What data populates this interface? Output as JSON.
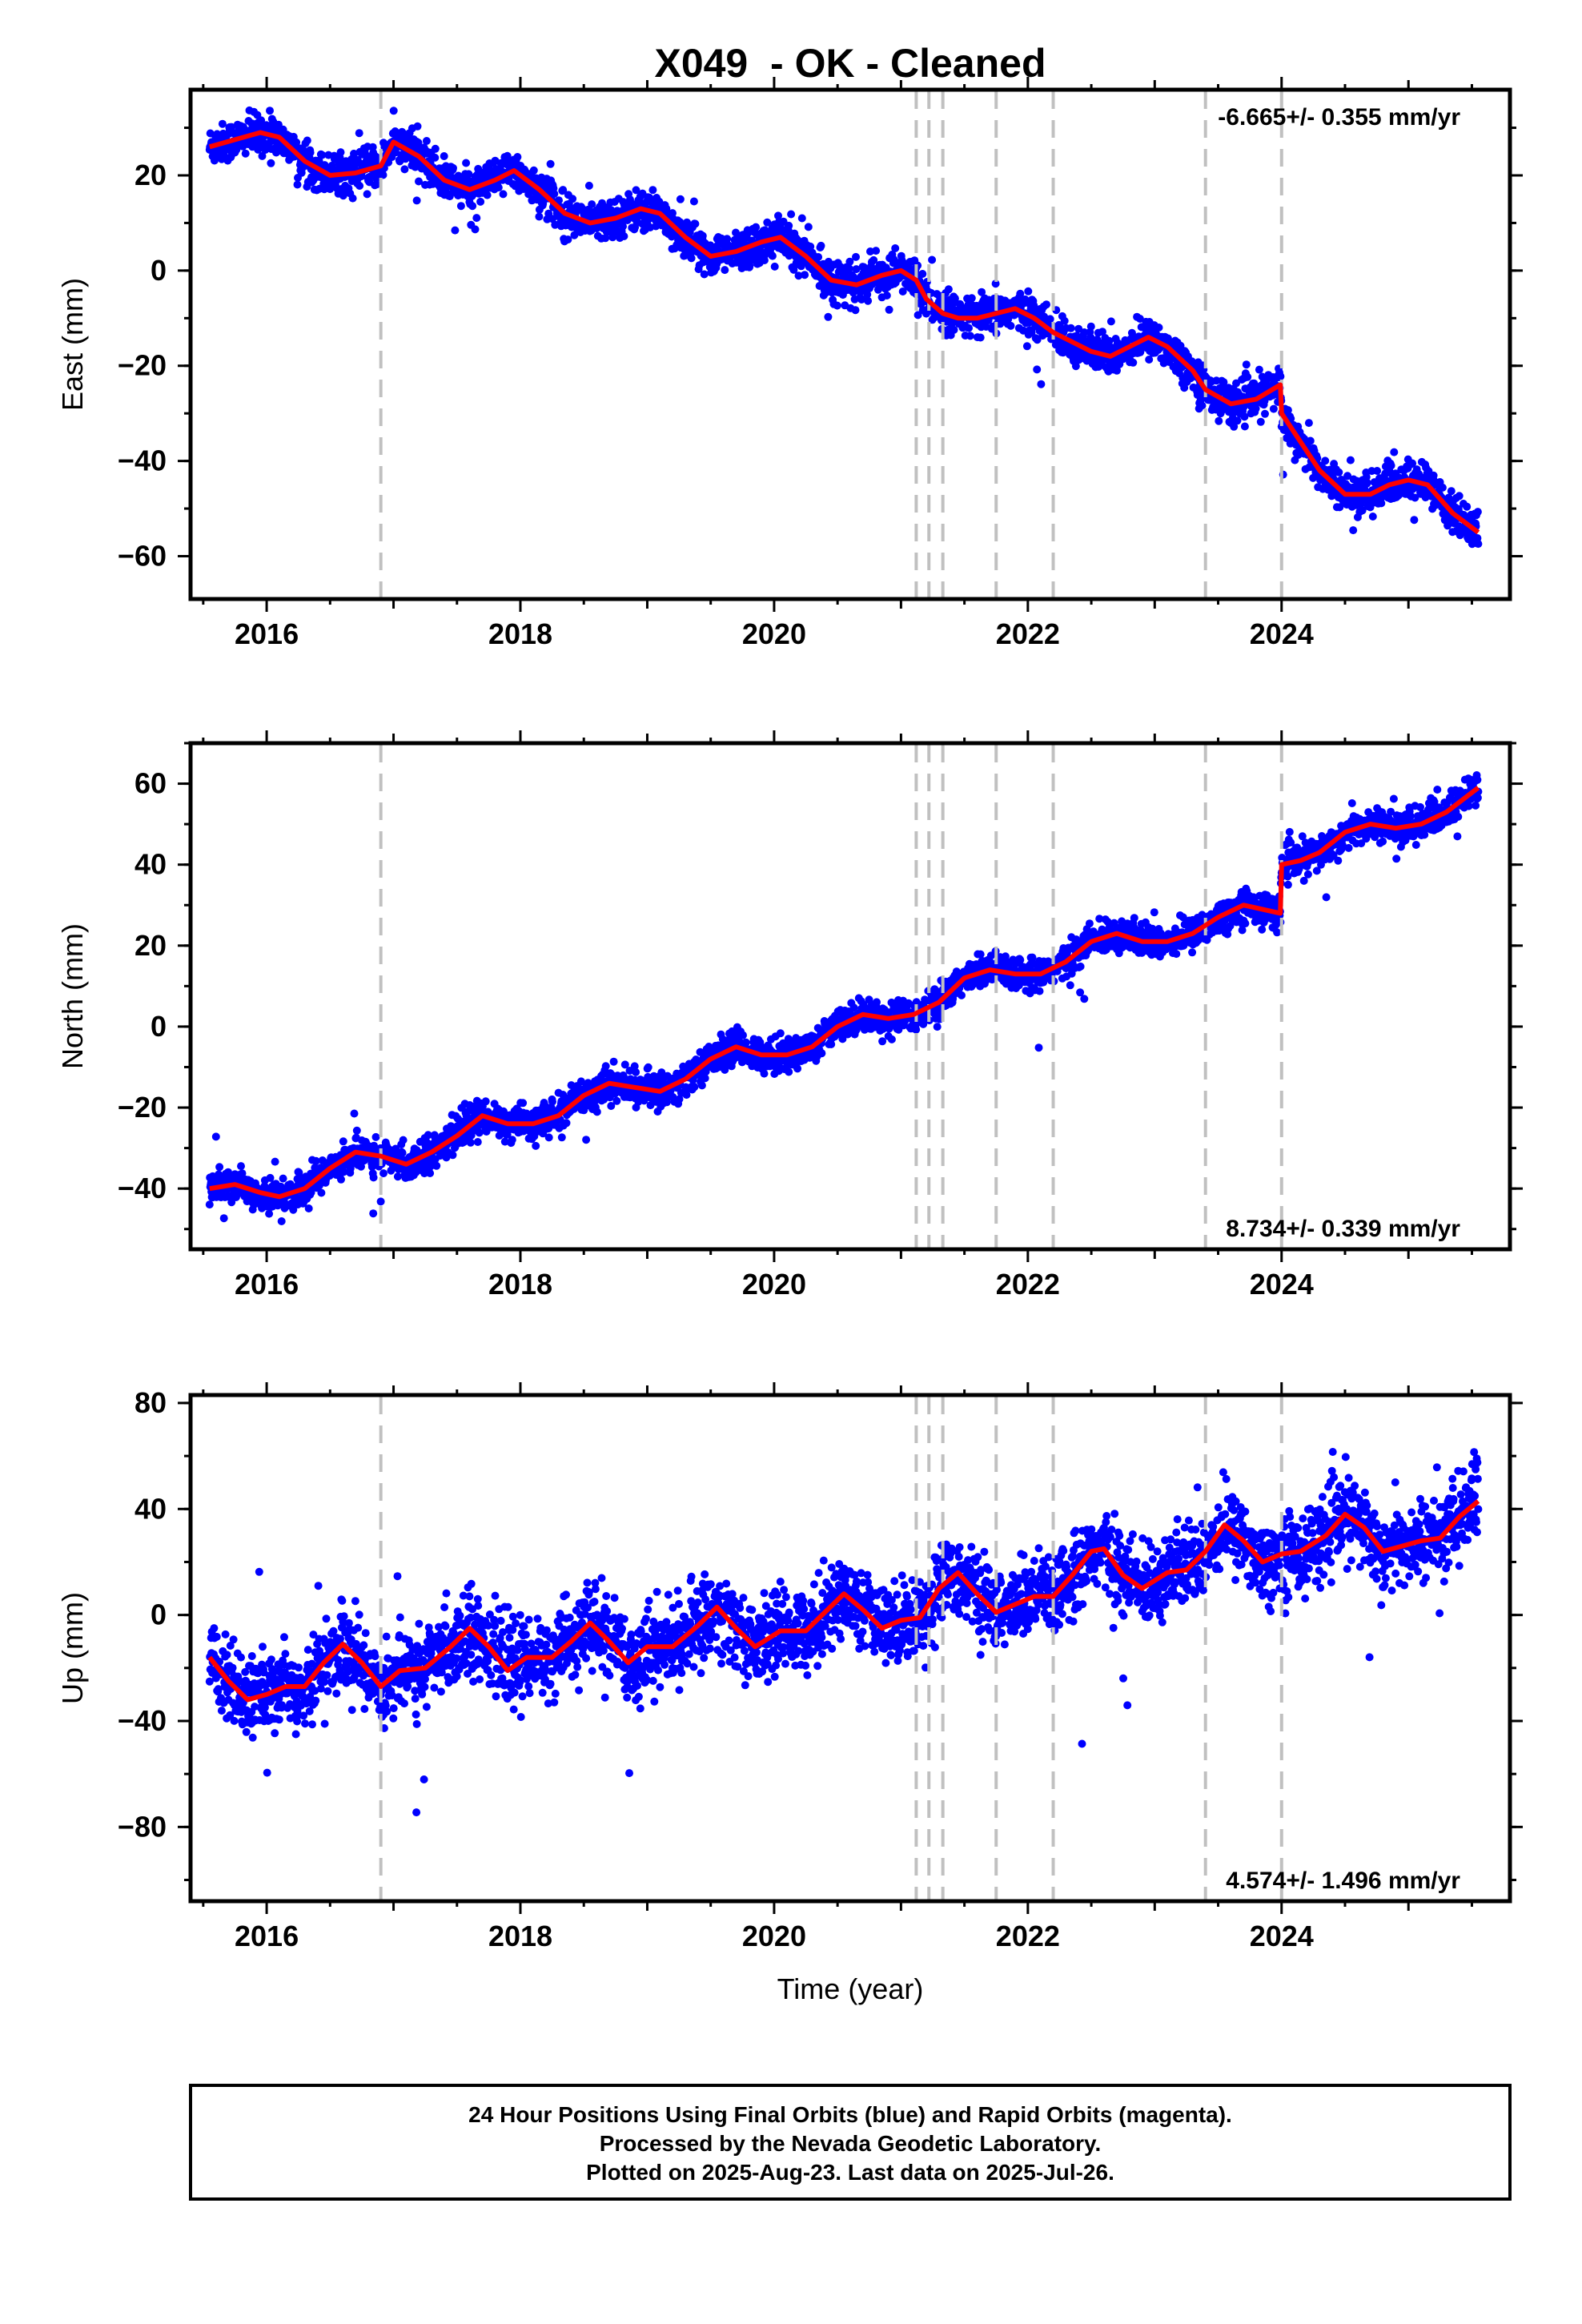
{
  "page": {
    "title": "X049  - OK - Cleaned",
    "footer_lines": [
      "24 Hour Positions Using Final Orbits (blue) and Rapid Orbits (magenta).",
      "Processed by the Nevada Geodetic Laboratory.",
      "Plotted on 2025-Aug-23. Last data on 2025-Jul-26."
    ]
  },
  "colors": {
    "points": "#0000ff",
    "model": "#ff0000",
    "event_lines": "#c0c0c0",
    "frame": "#000000"
  },
  "chart_data": [
    {
      "type": "scatter",
      "title": "X049  - OK - Cleaned",
      "ylabel": "East (mm)",
      "xlabel": "",
      "rate_label": "-6.665+/- 0.355 mm/yr",
      "rate_position": "top-right",
      "xlim": [
        2015.4,
        2025.8
      ],
      "ylim": [
        -69,
        38
      ],
      "xticks": [
        "2016",
        "2018",
        "2020",
        "2022",
        "2024"
      ],
      "yticks": [
        "20",
        "0",
        "−20",
        "−40",
        "−60"
      ],
      "event_lines": [
        2016.9,
        2021.12,
        2021.22,
        2021.33,
        2021.75,
        2022.2,
        2023.4,
        2024.0
      ],
      "model_line": {
        "name": "model",
        "x": [
          2015.55,
          2015.75,
          2015.95,
          2016.1,
          2016.3,
          2016.5,
          2016.7,
          2016.9,
          2017.0,
          2017.2,
          2017.4,
          2017.6,
          2017.8,
          2017.95,
          2018.15,
          2018.35,
          2018.55,
          2018.75,
          2018.95,
          2019.1,
          2019.3,
          2019.5,
          2019.7,
          2019.9,
          2020.05,
          2020.25,
          2020.45,
          2020.65,
          2020.85,
          2021.0,
          2021.12,
          2021.2,
          2021.33,
          2021.45,
          2021.6,
          2021.75,
          2021.9,
          2022.05,
          2022.2,
          2022.35,
          2022.5,
          2022.65,
          2022.8,
          2022.95,
          2023.1,
          2023.3,
          2023.4,
          2023.6,
          2023.8,
          2023.99,
          2024.0,
          2024.15,
          2024.3,
          2024.5,
          2024.7,
          2024.85,
          2025.0,
          2025.15,
          2025.35,
          2025.55
        ],
        "y": [
          26,
          27.5,
          29,
          28,
          23,
          20,
          20.5,
          22,
          27,
          24,
          19,
          17,
          19,
          21,
          17,
          12,
          10,
          11,
          13,
          12,
          7,
          3,
          4,
          6,
          7,
          3,
          -2,
          -3,
          -1,
          0,
          -2,
          -6,
          -9,
          -10,
          -10,
          -9,
          -8,
          -10,
          -13,
          -15,
          -17,
          -18,
          -16,
          -14,
          -16,
          -21,
          -25,
          -28,
          -27,
          -24,
          -30,
          -36,
          -42,
          -47,
          -47,
          -45,
          -44,
          -45,
          -51,
          -55
        ]
      },
      "point_count": 3350
    },
    {
      "type": "scatter",
      "ylabel": "North (mm)",
      "xlabel": "",
      "rate_label": "8.734+/- 0.339 mm/yr",
      "rate_position": "bottom-right",
      "xlim": [
        2015.4,
        2025.8
      ],
      "ylim": [
        -55,
        70
      ],
      "xticks": [
        "2016",
        "2018",
        "2020",
        "2022",
        "2024"
      ],
      "yticks": [
        "60",
        "40",
        "20",
        "0",
        "−20",
        "−40"
      ],
      "event_lines": [
        2016.9,
        2021.12,
        2021.22,
        2021.33,
        2021.75,
        2022.2,
        2023.4,
        2024.0
      ],
      "model_line": {
        "name": "model",
        "x": [
          2015.55,
          2015.75,
          2015.95,
          2016.1,
          2016.3,
          2016.5,
          2016.7,
          2016.9,
          2017.1,
          2017.3,
          2017.5,
          2017.7,
          2017.9,
          2018.1,
          2018.3,
          2018.5,
          2018.7,
          2018.9,
          2019.1,
          2019.3,
          2019.5,
          2019.7,
          2019.9,
          2020.1,
          2020.3,
          2020.5,
          2020.7,
          2020.9,
          2021.1,
          2021.3,
          2021.5,
          2021.7,
          2021.9,
          2022.1,
          2022.3,
          2022.5,
          2022.7,
          2022.9,
          2023.1,
          2023.3,
          2023.5,
          2023.7,
          2023.99,
          2024.0,
          2024.15,
          2024.3,
          2024.5,
          2024.7,
          2024.9,
          2025.1,
          2025.3,
          2025.55
        ],
        "y": [
          -40,
          -39,
          -41,
          -42,
          -40,
          -35,
          -31,
          -32,
          -34,
          -31,
          -27,
          -22,
          -24,
          -24,
          -22,
          -17,
          -14,
          -15,
          -16,
          -13,
          -8,
          -5,
          -7,
          -7,
          -5,
          0,
          3,
          2,
          3,
          6,
          12,
          14,
          13,
          13,
          16,
          21,
          23,
          21,
          21,
          23,
          27,
          30,
          28,
          40,
          41,
          43,
          48,
          50,
          49,
          50,
          53,
          59
        ]
      },
      "point_count": 3350
    },
    {
      "type": "scatter",
      "ylabel": "Up (mm)",
      "xlabel": "Time (year)",
      "rate_label": "4.574+/- 1.496 mm/yr",
      "rate_position": "bottom-right",
      "xlim": [
        2015.4,
        2025.8
      ],
      "ylim": [
        -108,
        83
      ],
      "xticks": [
        "2016",
        "2018",
        "2020",
        "2022",
        "2024"
      ],
      "yticks": [
        "80",
        "40",
        "0",
        "−40",
        "−80"
      ],
      "event_lines": [
        2016.9,
        2021.12,
        2021.22,
        2021.33,
        2021.75,
        2022.2,
        2023.4,
        2024.0
      ],
      "model_line": {
        "name": "model",
        "x": [
          2015.55,
          2015.7,
          2015.85,
          2016.0,
          2016.15,
          2016.3,
          2016.45,
          2016.6,
          2016.75,
          2016.9,
          2017.05,
          2017.25,
          2017.45,
          2017.6,
          2017.75,
          2017.9,
          2018.05,
          2018.25,
          2018.4,
          2018.55,
          2018.7,
          2018.85,
          2019.0,
          2019.2,
          2019.4,
          2019.55,
          2019.7,
          2019.85,
          2020.05,
          2020.25,
          2020.4,
          2020.55,
          2020.7,
          2020.85,
          2021.0,
          2021.15,
          2021.3,
          2021.45,
          2021.6,
          2021.75,
          2021.9,
          2022.05,
          2022.2,
          2022.35,
          2022.5,
          2022.6,
          2022.75,
          2022.9,
          2023.1,
          2023.25,
          2023.4,
          2023.55,
          2023.7,
          2023.85,
          2024.0,
          2024.15,
          2024.35,
          2024.5,
          2024.65,
          2024.8,
          2024.95,
          2025.1,
          2025.25,
          2025.4,
          2025.55
        ],
        "y": [
          -16,
          -25,
          -32,
          -30,
          -27,
          -27,
          -18,
          -11,
          -18,
          -27,
          -21,
          -20,
          -12,
          -5,
          -12,
          -21,
          -16,
          -16,
          -10,
          -3,
          -10,
          -18,
          -12,
          -12,
          -4,
          3,
          -5,
          -12,
          -6,
          -6,
          1,
          8,
          2,
          -5,
          -2,
          -1,
          10,
          16,
          8,
          1,
          4,
          7,
          7,
          15,
          24,
          25,
          15,
          10,
          16,
          17,
          24,
          34,
          28,
          20,
          23,
          24,
          30,
          38,
          33,
          24,
          26,
          28,
          29,
          37,
          43
        ]
      },
      "point_count": 3350
    }
  ]
}
